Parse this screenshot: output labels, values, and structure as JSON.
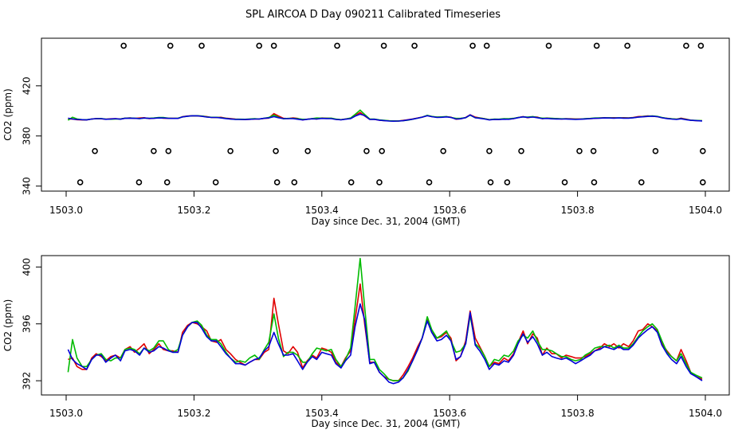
{
  "title": "SPL AIRCOA D  Day 090211  Calibrated Timeseries",
  "colors": {
    "red": "#e00000",
    "green": "#00bb00",
    "blue": "#0000d8",
    "frame": "#000000",
    "bg": "#ffffff"
  },
  "chart_data": [
    {
      "type": "line",
      "xlabel": "Day since Dec. 31, 2004 (GMT)",
      "ylabel": "CO2 (ppm)",
      "xlim": [
        1503.0,
        1504.0
      ],
      "ylim": [
        336,
        458
      ],
      "xticks": [
        "1503.0",
        "1503.2",
        "1503.4",
        "1503.6",
        "1503.8",
        "1504.0"
      ],
      "xtick_values": [
        1503.0,
        1503.2,
        1503.4,
        1503.6,
        1503.8,
        1504.0
      ],
      "yticks": [
        "340",
        "380",
        "420"
      ],
      "ytick_values": [
        340,
        380,
        420
      ],
      "markers": {
        "style": "open-circle",
        "rows": [
          {
            "y": 452,
            "x": [
              1503.09,
              1503.163,
              1503.212,
              1503.302,
              1503.325,
              1503.424,
              1503.497,
              1503.545,
              1503.636,
              1503.658,
              1503.755,
              1503.83,
              1503.878,
              1503.97,
              1503.993
            ]
          },
          {
            "y": 368,
            "x": [
              1503.045,
              1503.137,
              1503.16,
              1503.257,
              1503.328,
              1503.378,
              1503.47,
              1503.494,
              1503.59,
              1503.662,
              1503.712,
              1503.803,
              1503.825,
              1503.922,
              1503.996
            ]
          },
          {
            "y": 343,
            "x": [
              1503.022,
              1503.114,
              1503.158,
              1503.234,
              1503.33,
              1503.357,
              1503.446,
              1503.49,
              1503.568,
              1503.664,
              1503.69,
              1503.78,
              1503.826,
              1503.9,
              1503.996
            ]
          }
        ]
      }
    },
    {
      "type": "line",
      "xlabel": "Day since Dec. 31, 2004 (GMT)",
      "ylabel": "CO2 (ppm)",
      "xlim": [
        1503.0,
        1504.0
      ],
      "ylim": [
        391.0,
        400.8
      ],
      "xticks": [
        "1503.0",
        "1503.2",
        "1503.4",
        "1503.6",
        "1503.8",
        "1504.0"
      ],
      "xtick_values": [
        1503.0,
        1503.2,
        1503.4,
        1503.6,
        1503.8,
        1504.0
      ],
      "yticks": [
        "392",
        "396",
        "400"
      ],
      "ytick_values": [
        392,
        396,
        400
      ],
      "x": [
        1503.003,
        1503.01,
        1503.017,
        1503.025,
        1503.032,
        1503.04,
        1503.047,
        1503.055,
        1503.062,
        1503.07,
        1503.077,
        1503.085,
        1503.092,
        1503.1,
        1503.107,
        1503.115,
        1503.122,
        1503.13,
        1503.137,
        1503.145,
        1503.152,
        1503.16,
        1503.167,
        1503.175,
        1503.182,
        1503.19,
        1503.197,
        1503.205,
        1503.212,
        1503.22,
        1503.227,
        1503.235,
        1503.242,
        1503.25,
        1503.257,
        1503.265,
        1503.272,
        1503.28,
        1503.287,
        1503.295,
        1503.302,
        1503.31,
        1503.317,
        1503.325,
        1503.332,
        1503.34,
        1503.347,
        1503.355,
        1503.362,
        1503.37,
        1503.377,
        1503.385,
        1503.392,
        1503.4,
        1503.407,
        1503.415,
        1503.422,
        1503.43,
        1503.437,
        1503.445,
        1503.452,
        1503.46,
        1503.467,
        1503.475,
        1503.482,
        1503.49,
        1503.497,
        1503.505,
        1503.512,
        1503.52,
        1503.527,
        1503.535,
        1503.542,
        1503.55,
        1503.557,
        1503.565,
        1503.572,
        1503.58,
        1503.587,
        1503.595,
        1503.602,
        1503.61,
        1503.617,
        1503.625,
        1503.632,
        1503.64,
        1503.647,
        1503.655,
        1503.662,
        1503.67,
        1503.677,
        1503.685,
        1503.692,
        1503.7,
        1503.707,
        1503.715,
        1503.722,
        1503.73,
        1503.737,
        1503.745,
        1503.752,
        1503.76,
        1503.767,
        1503.775,
        1503.782,
        1503.79,
        1503.797,
        1503.805,
        1503.812,
        1503.82,
        1503.827,
        1503.835,
        1503.842,
        1503.85,
        1503.857,
        1503.865,
        1503.872,
        1503.88,
        1503.887,
        1503.895,
        1503.902,
        1503.91,
        1503.917,
        1503.925,
        1503.932,
        1503.94,
        1503.947,
        1503.955,
        1503.962,
        1503.97,
        1503.977,
        1503.985,
        1503.995
      ],
      "series": [
        {
          "color": "#e00000",
          "values": [
            393.5,
            393.6,
            393.0,
            392.8,
            392.8,
            393.6,
            393.9,
            393.7,
            393.4,
            393.7,
            393.8,
            393.6,
            394.2,
            394.4,
            394.0,
            394.3,
            394.6,
            393.9,
            394.2,
            394.6,
            394.2,
            394.1,
            394.1,
            394.0,
            395.4,
            395.9,
            396.1,
            396.0,
            395.8,
            395.5,
            394.8,
            394.7,
            394.9,
            394.2,
            393.9,
            393.5,
            393.3,
            393.1,
            393.3,
            393.5,
            393.5,
            394.0,
            394.2,
            397.8,
            396.0,
            394.1,
            393.9,
            394.4,
            394.0,
            392.9,
            393.4,
            393.8,
            393.6,
            394.3,
            394.2,
            394.0,
            393.3,
            393.0,
            393.6,
            394.1,
            396.3,
            398.8,
            396.0,
            393.3,
            393.3,
            392.6,
            392.3,
            392.1,
            392.0,
            392.0,
            392.4,
            393.0,
            393.6,
            394.4,
            395.0,
            396.3,
            395.4,
            395.0,
            395.1,
            395.4,
            395.0,
            393.4,
            393.7,
            394.8,
            396.9,
            395.0,
            394.4,
            393.7,
            393.0,
            393.3,
            393.2,
            393.6,
            393.4,
            393.9,
            394.7,
            395.5,
            394.6,
            395.3,
            395.0,
            393.8,
            394.3,
            393.9,
            393.9,
            393.6,
            393.8,
            393.7,
            393.6,
            393.6,
            393.7,
            393.9,
            394.1,
            394.3,
            394.6,
            394.4,
            394.6,
            394.3,
            394.6,
            394.4,
            394.8,
            395.5,
            395.6,
            396.0,
            395.8,
            395.5,
            394.6,
            394.1,
            393.7,
            393.4,
            394.2,
            393.4,
            392.6,
            392.3,
            392.1
          ]
        },
        {
          "color": "#00bb00",
          "values": [
            392.6,
            394.9,
            393.6,
            393.0,
            393.0,
            393.5,
            393.8,
            393.9,
            393.5,
            393.4,
            393.6,
            393.6,
            394.2,
            394.3,
            394.2,
            393.9,
            394.3,
            394.1,
            394.3,
            394.8,
            394.8,
            394.2,
            394.0,
            394.2,
            395.2,
            395.8,
            396.1,
            396.2,
            395.9,
            395.2,
            394.9,
            394.9,
            394.6,
            394.0,
            393.6,
            393.3,
            393.4,
            393.3,
            393.6,
            393.8,
            393.5,
            394.2,
            394.7,
            396.7,
            395.0,
            393.7,
            394.0,
            394.0,
            393.8,
            393.3,
            393.3,
            393.9,
            394.3,
            394.2,
            394.1,
            394.2,
            393.5,
            393.0,
            393.5,
            394.3,
            397.2,
            400.6,
            397.2,
            393.5,
            393.5,
            392.8,
            392.5,
            392.1,
            392.0,
            392.0,
            392.2,
            392.7,
            393.4,
            394.2,
            395.0,
            396.5,
            395.6,
            395.0,
            395.2,
            395.5,
            394.8,
            394.0,
            394.1,
            394.6,
            396.6,
            394.6,
            394.3,
            393.7,
            393.0,
            393.5,
            393.4,
            393.8,
            393.7,
            394.1,
            394.8,
            395.2,
            395.0,
            395.5,
            394.8,
            394.2,
            394.2,
            394.1,
            393.9,
            393.7,
            393.7,
            393.5,
            393.4,
            393.5,
            393.8,
            394.0,
            394.3,
            394.4,
            394.4,
            394.5,
            394.3,
            394.5,
            394.3,
            394.3,
            394.6,
            395.1,
            395.5,
            395.8,
            396.0,
            395.6,
            394.8,
            394.0,
            393.7,
            393.4,
            393.9,
            393.2,
            392.6,
            392.4,
            392.2
          ]
        },
        {
          "color": "#0000d8",
          "values": [
            394.2,
            393.5,
            393.2,
            393.0,
            392.8,
            393.5,
            393.8,
            393.8,
            393.3,
            393.6,
            393.8,
            393.4,
            394.1,
            394.2,
            394.1,
            393.8,
            394.3,
            394.0,
            394.1,
            394.4,
            394.3,
            394.1,
            394.0,
            394.0,
            395.2,
            395.8,
            396.1,
            396.1,
            395.7,
            395.1,
            394.8,
            394.8,
            394.4,
            393.9,
            393.6,
            393.2,
            393.2,
            393.1,
            393.3,
            393.5,
            393.6,
            394.1,
            394.4,
            395.4,
            394.6,
            393.8,
            393.8,
            393.9,
            393.4,
            392.8,
            393.3,
            393.7,
            393.5,
            394.0,
            393.9,
            393.8,
            393.2,
            392.9,
            393.4,
            393.8,
            395.8,
            397.4,
            396.3,
            393.2,
            393.3,
            392.6,
            392.3,
            391.9,
            391.8,
            391.9,
            392.2,
            392.8,
            393.4,
            394.2,
            395.0,
            396.2,
            395.4,
            394.8,
            394.9,
            395.2,
            394.8,
            393.5,
            393.7,
            394.6,
            396.8,
            394.5,
            394.1,
            393.5,
            392.8,
            393.2,
            393.1,
            393.4,
            393.3,
            393.8,
            394.6,
            395.3,
            394.7,
            395.1,
            394.6,
            393.8,
            394.0,
            393.7,
            393.6,
            393.5,
            393.6,
            393.4,
            393.2,
            393.4,
            393.6,
            393.8,
            394.1,
            394.2,
            394.4,
            394.3,
            394.2,
            394.4,
            394.2,
            394.2,
            394.5,
            395.0,
            395.3,
            395.6,
            395.8,
            395.4,
            394.5,
            393.9,
            393.5,
            393.2,
            393.7,
            393.0,
            392.5,
            392.3,
            392.0
          ]
        }
      ]
    }
  ]
}
